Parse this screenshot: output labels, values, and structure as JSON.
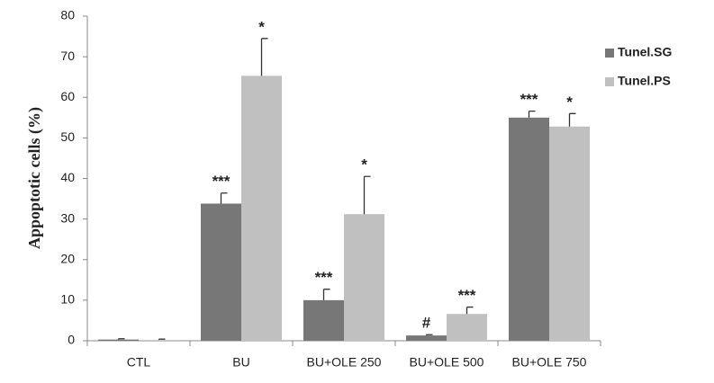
{
  "chart_data": {
    "type": "bar",
    "y_label": "Appoptotic cells (%)",
    "categories": [
      "CTL",
      "BU",
      "BU+OLE 250",
      "BU+OLE 500",
      "BU+OLE 750"
    ],
    "series": [
      {
        "name": "Tunel.SG",
        "color": "#777777",
        "values": [
          0.3,
          33.8,
          10,
          1.3,
          55
        ],
        "errors": [
          0.2,
          2.6,
          2.7,
          0.2,
          1.6
        ],
        "annotations": [
          null,
          "***",
          "***",
          "#",
          "***"
        ]
      },
      {
        "name": "Tunel.PS",
        "color": "#c0c0c0",
        "values": [
          0.2,
          65.3,
          31.2,
          6.6,
          52.8
        ],
        "errors": [
          0.2,
          9.2,
          9.3,
          1.7,
          3.2
        ],
        "annotations": [
          null,
          "*",
          "*",
          "***",
          "*"
        ]
      }
    ],
    "ylim": [
      0,
      80
    ],
    "yticks": [
      0,
      10,
      20,
      30,
      40,
      50,
      60,
      70,
      80
    ],
    "grid": false,
    "legend": "upper right"
  }
}
